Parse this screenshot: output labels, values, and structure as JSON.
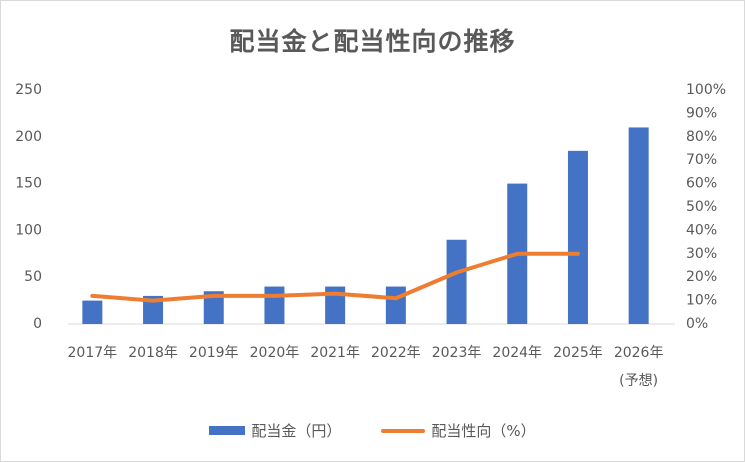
{
  "chart_data": {
    "type": "bar",
    "title": "配当金と配当性向の推移",
    "categories": [
      "2017年",
      "2018年",
      "2019年",
      "2020年",
      "2021年",
      "2022年",
      "2023年",
      "2024年",
      "2025年",
      "2026年"
    ],
    "category_sublabels": [
      "",
      "",
      "",
      "",
      "",
      "",
      "",
      "",
      "",
      "(予想)"
    ],
    "left_axis": {
      "ylim": [
        0,
        250
      ],
      "ticks": [
        "0",
        "50",
        "100",
        "150",
        "200",
        "250"
      ]
    },
    "right_axis": {
      "ylim": [
        0,
        100
      ],
      "ticks": [
        "0%",
        "10%",
        "20%",
        "30%",
        "40%",
        "50%",
        "60%",
        "70%",
        "80%",
        "90%",
        "100%"
      ]
    },
    "series": [
      {
        "name": "配当金（円）",
        "type": "bar",
        "axis": "left",
        "color": "#4472c4",
        "values": [
          25,
          30,
          35,
          40,
          40,
          40,
          90,
          150,
          185,
          210
        ]
      },
      {
        "name": "配当性向（%）",
        "type": "line",
        "axis": "right",
        "color": "#ed7d31",
        "values": [
          12,
          10,
          12,
          12,
          13,
          11,
          22,
          30,
          30,
          null
        ]
      }
    ],
    "grid": false,
    "legend_position": "bottom"
  }
}
